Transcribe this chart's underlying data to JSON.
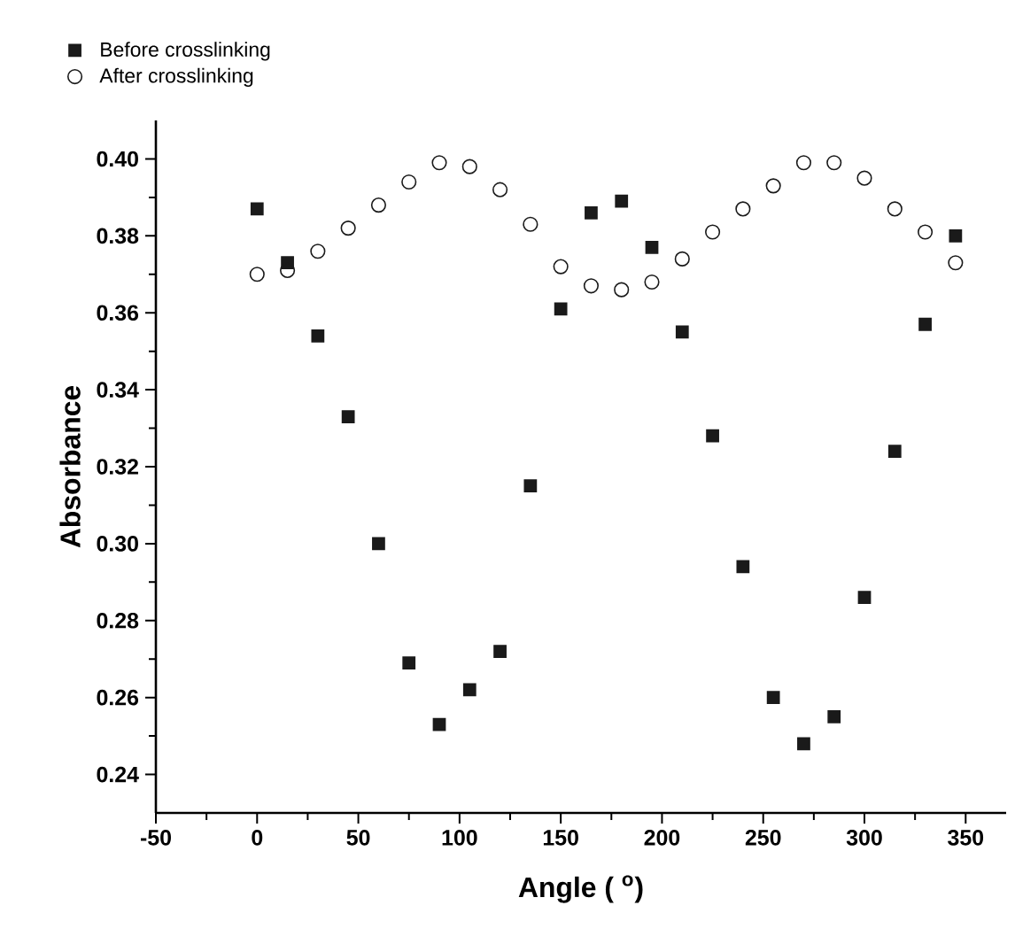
{
  "chart_data": {
    "type": "scatter",
    "xlabel": "Angle ( $^{o}$)",
    "ylabel": "Absorbance",
    "xlim": [
      -50,
      370
    ],
    "ylim": [
      0.23,
      0.41
    ],
    "xticks": [
      -50,
      0,
      50,
      100,
      150,
      200,
      250,
      300,
      350
    ],
    "yticks": [
      {
        "value": 0.24,
        "label": "0.24"
      },
      {
        "value": 0.26,
        "label": "0.26"
      },
      {
        "value": 0.28,
        "label": "0.28"
      },
      {
        "value": 0.3,
        "label": "0.30"
      },
      {
        "value": 0.32,
        "label": "0.32"
      },
      {
        "value": 0.34,
        "label": "0.34"
      },
      {
        "value": 0.36,
        "label": "0.36"
      },
      {
        "value": 0.38,
        "label": "0.38"
      },
      {
        "value": 0.4,
        "label": "0.40"
      }
    ],
    "x": [
      0,
      15,
      30,
      45,
      60,
      75,
      90,
      105,
      120,
      135,
      150,
      165,
      180,
      195,
      210,
      225,
      240,
      255,
      270,
      285,
      300,
      315,
      330,
      345
    ],
    "series": [
      {
        "name": "Before crosslinking",
        "color": "#1a1a1a",
        "marker": "square",
        "values": [
          0.387,
          0.373,
          0.354,
          0.333,
          0.3,
          0.269,
          0.253,
          0.262,
          0.272,
          0.315,
          0.361,
          0.386,
          0.389,
          0.377,
          0.355,
          0.328,
          0.294,
          0.26,
          0.248,
          0.255,
          0.286,
          0.324,
          0.357,
          0.38
        ]
      },
      {
        "name": "After crosslinking",
        "color": "#1a1a1a",
        "marker": "circle",
        "values": [
          0.37,
          0.371,
          0.376,
          0.382,
          0.388,
          0.394,
          0.399,
          0.398,
          0.392,
          0.383,
          0.372,
          0.367,
          0.366,
          0.368,
          0.374,
          0.381,
          0.387,
          0.393,
          0.399,
          0.399,
          0.395,
          0.387,
          0.381,
          0.373
        ]
      }
    ],
    "legend": "top left",
    "grid": false
  }
}
